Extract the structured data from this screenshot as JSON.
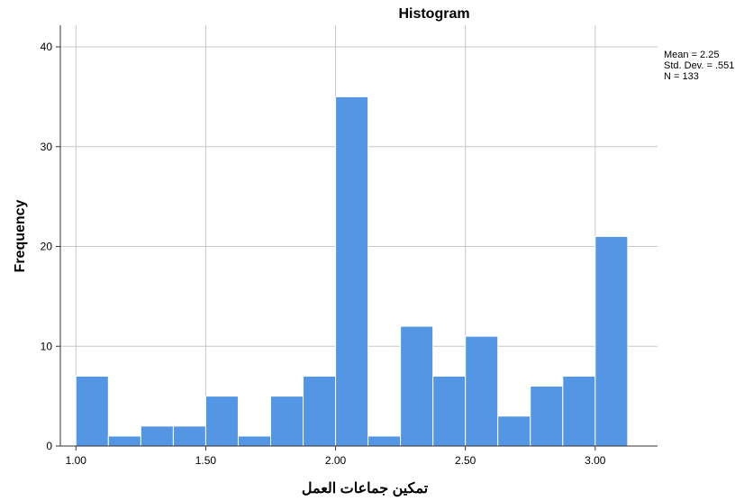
{
  "chart_data": {
    "type": "bar",
    "title": "Histogram",
    "xlabel": "تمكين جماعات العمل",
    "ylabel": "Frequency",
    "x_ticks": [
      "1.00",
      "1.50",
      "2.00",
      "2.50",
      "3.00"
    ],
    "x_tick_values": [
      1.0,
      1.5,
      2.0,
      2.5,
      3.0
    ],
    "y_ticks": [
      "0",
      "10",
      "20",
      "30",
      "40"
    ],
    "y_tick_values": [
      0,
      10,
      20,
      30,
      40
    ],
    "xlim": [
      0.94,
      3.24
    ],
    "ylim": [
      0,
      40
    ],
    "bin_edges": [
      1.0,
      1.125,
      1.25,
      1.375,
      1.5,
      1.625,
      1.75,
      1.875,
      2.0,
      2.125,
      2.25,
      2.375,
      2.5,
      2.625,
      2.75,
      2.875,
      3.0,
      3.125
    ],
    "values": [
      7,
      1,
      2,
      2,
      5,
      1,
      5,
      7,
      35,
      1,
      12,
      7,
      11,
      3,
      6,
      7,
      21
    ],
    "grid": true,
    "stats": {
      "mean": "Mean = 2.25",
      "std_dev": "Std. Dev. = .551",
      "n": "N = 133"
    },
    "colors": {
      "bar": "#5496e3",
      "bar_edge": "#ffffff",
      "grid": "#c8c8c8",
      "axis": "#333333"
    }
  }
}
